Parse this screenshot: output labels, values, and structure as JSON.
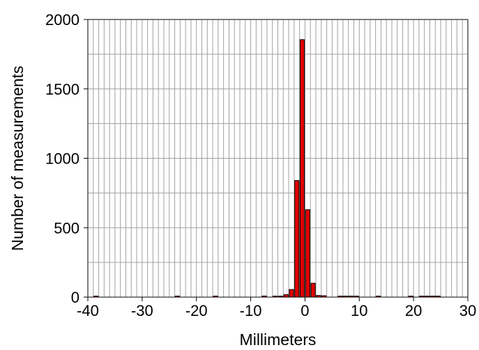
{
  "chart_data": {
    "type": "bar",
    "title": "",
    "xlabel": "Millimeters",
    "ylabel": "Number of measurements",
    "xlim": [
      -40,
      30
    ],
    "ylim": [
      0,
      2000
    ],
    "xticks": [
      -40,
      -30,
      -20,
      -10,
      0,
      10,
      20,
      30
    ],
    "yticks": [
      0,
      500,
      1000,
      1500,
      2000
    ],
    "grid": true,
    "bin_width": 1,
    "bar_color": "#e00000",
    "bins": [
      {
        "x": -39,
        "y": 2
      },
      {
        "x": -24,
        "y": 3
      },
      {
        "x": -17,
        "y": 3
      },
      {
        "x": -8,
        "y": 8
      },
      {
        "x": -6,
        "y": 3
      },
      {
        "x": -5,
        "y": 4
      },
      {
        "x": -4,
        "y": 18
      },
      {
        "x": -3,
        "y": 55
      },
      {
        "x": -2,
        "y": 840
      },
      {
        "x": -1,
        "y": 1855
      },
      {
        "x": 0,
        "y": 630
      },
      {
        "x": 1,
        "y": 100
      },
      {
        "x": 2,
        "y": 12
      },
      {
        "x": 3,
        "y": 10
      },
      {
        "x": 6,
        "y": 3
      },
      {
        "x": 7,
        "y": 3
      },
      {
        "x": 8,
        "y": 3
      },
      {
        "x": 9,
        "y": 2
      },
      {
        "x": 13,
        "y": 2
      },
      {
        "x": 19,
        "y": 2
      },
      {
        "x": 21,
        "y": 2
      },
      {
        "x": 22,
        "y": 3
      },
      {
        "x": 23,
        "y": 2
      },
      {
        "x": 24,
        "y": 2
      }
    ]
  }
}
